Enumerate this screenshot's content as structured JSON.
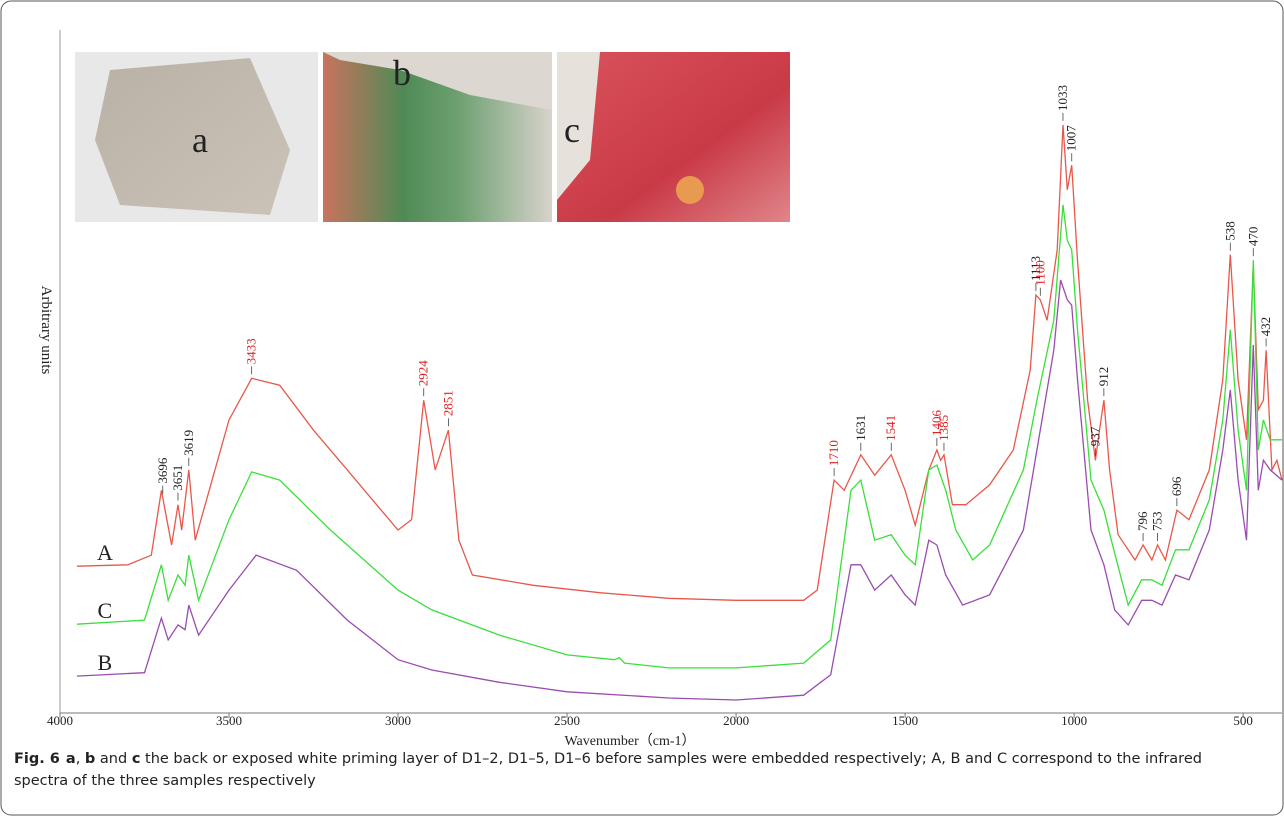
{
  "chart_data": {
    "type": "line",
    "x_label": "Wavenumber（cm-1）",
    "y_label": "Arbitrary units",
    "xlim": [
      4000,
      385
    ],
    "ylim": [
      0,
      100
    ],
    "xticks": [
      4000,
      3500,
      3000,
      2500,
      2000,
      1500,
      1000,
      500
    ],
    "series": [
      {
        "name": "A",
        "color": "#e8584a",
        "x": [
          3950,
          3800,
          3730,
          3700,
          3670,
          3651,
          3640,
          3619,
          3600,
          3550,
          3500,
          3433,
          3350,
          3250,
          3150,
          3050,
          3000,
          2960,
          2924,
          2890,
          2851,
          2820,
          2780,
          2600,
          2400,
          2200,
          2000,
          1800,
          1760,
          1710,
          1680,
          1631,
          1590,
          1541,
          1500,
          1470,
          1430,
          1406,
          1395,
          1385,
          1360,
          1320,
          1250,
          1180,
          1130,
          1113,
          1100,
          1080,
          1050,
          1033,
          1020,
          1007,
          990,
          960,
          937,
          925,
          912,
          895,
          870,
          820,
          796,
          770,
          753,
          730,
          696,
          660,
          600,
          560,
          538,
          515,
          490,
          470,
          455,
          440,
          432,
          415,
          400,
          385
        ],
        "values": [
          21.5,
          21.7,
          23.1,
          32.6,
          24.6,
          30.5,
          26.8,
          35.6,
          25.3,
          34.1,
          42.9,
          49.0,
          48.0,
          41.4,
          35.6,
          29.7,
          26.8,
          28.3,
          45.8,
          35.6,
          41.4,
          25.3,
          20.2,
          18.7,
          17.6,
          16.8,
          16.5,
          16.5,
          18.0,
          34.1,
          32.6,
          37.8,
          34.8,
          37.8,
          32.6,
          27.5,
          35.6,
          38.5,
          37.0,
          37.8,
          30.5,
          30.5,
          33.4,
          38.5,
          50.2,
          61.2,
          60.5,
          57.5,
          67.8,
          86.1,
          76.6,
          80.2,
          66.3,
          45.8,
          37.0,
          41.4,
          45.8,
          35.6,
          26.1,
          22.4,
          24.6,
          22.4,
          24.6,
          22.4,
          29.7,
          28.3,
          35.6,
          48.8,
          67.1,
          48.8,
          40.0,
          65.6,
          44.4,
          45.8,
          53.1,
          35.6,
          37.0,
          34.1
        ]
      },
      {
        "name": "C",
        "color": "#3adf3a",
        "x": [
          3950,
          3750,
          3700,
          3680,
          3651,
          3630,
          3619,
          3590,
          3500,
          3433,
          3350,
          3200,
          3000,
          2900,
          2700,
          2500,
          2360,
          2345,
          2330,
          2200,
          2000,
          1800,
          1720,
          1660,
          1631,
          1590,
          1541,
          1500,
          1470,
          1430,
          1406,
          1380,
          1350,
          1300,
          1250,
          1150,
          1110,
          1060,
          1033,
          1020,
          1007,
          990,
          950,
          912,
          890,
          840,
          800,
          770,
          740,
          700,
          660,
          600,
          560,
          538,
          515,
          490,
          470,
          455,
          440,
          420,
          385
        ],
        "values": [
          13.0,
          13.6,
          21.7,
          16.5,
          20.2,
          18.7,
          23.1,
          16.5,
          28.3,
          35.3,
          34.1,
          26.8,
          18.0,
          15.1,
          11.4,
          8.5,
          7.8,
          8.1,
          7.3,
          6.6,
          6.6,
          7.3,
          10.7,
          32.6,
          34.1,
          25.3,
          26.1,
          23.1,
          21.7,
          35.6,
          36.3,
          32.6,
          26.8,
          22.4,
          24.6,
          35.6,
          45.8,
          57.5,
          74.4,
          69.2,
          67.8,
          56.1,
          34.1,
          29.7,
          25.3,
          15.8,
          19.5,
          19.5,
          18.7,
          23.9,
          23.9,
          31.2,
          42.9,
          56.1,
          41.4,
          32.6,
          66.3,
          38.5,
          42.9,
          40.0,
          40.0
        ]
      },
      {
        "name": "B",
        "color": "#9a4cb0",
        "x": [
          3950,
          3750,
          3700,
          3680,
          3651,
          3630,
          3619,
          3590,
          3500,
          3420,
          3300,
          3150,
          3000,
          2900,
          2700,
          2500,
          2200,
          2000,
          1800,
          1720,
          1660,
          1631,
          1590,
          1541,
          1500,
          1470,
          1430,
          1406,
          1380,
          1330,
          1250,
          1150,
          1110,
          1060,
          1040,
          1020,
          1007,
          990,
          950,
          912,
          880,
          840,
          800,
          770,
          740,
          700,
          660,
          600,
          560,
          538,
          515,
          490,
          470,
          455,
          440,
          420,
          385
        ],
        "values": [
          5.4,
          5.9,
          13.9,
          10.7,
          12.9,
          12.2,
          15.8,
          11.4,
          18.0,
          23.1,
          20.9,
          13.6,
          7.8,
          6.3,
          4.5,
          3.1,
          2.2,
          1.9,
          2.6,
          5.6,
          21.7,
          21.7,
          18.0,
          20.2,
          17.3,
          15.8,
          25.3,
          24.6,
          20.2,
          15.8,
          17.3,
          26.8,
          38.5,
          53.1,
          63.4,
          60.5,
          59.7,
          48.8,
          26.8,
          21.7,
          15.1,
          12.9,
          16.5,
          16.5,
          15.8,
          20.2,
          19.5,
          26.8,
          38.5,
          47.3,
          34.1,
          25.3,
          53.9,
          32.6,
          37.0,
          35.6,
          34.1
        ]
      }
    ],
    "annotations": [
      {
        "x": 3696,
        "color": "#222222"
      },
      {
        "x": 3651,
        "color": "#222222"
      },
      {
        "x": 3619,
        "color": "#222222"
      },
      {
        "x": 3433,
        "color": "#e02020"
      },
      {
        "x": 2924,
        "color": "#e02020"
      },
      {
        "x": 2851,
        "color": "#e02020"
      },
      {
        "x": 1710,
        "color": "#e02020"
      },
      {
        "x": 1631,
        "color": "#222222"
      },
      {
        "x": 1541,
        "color": "#e02020"
      },
      {
        "x": 1406,
        "color": "#e02020"
      },
      {
        "x": 1385,
        "color": "#e02020"
      },
      {
        "x": 1113,
        "color": "#222222"
      },
      {
        "x": 1100,
        "color": "#e02020"
      },
      {
        "x": 1033,
        "color": "#222222"
      },
      {
        "x": 1007,
        "color": "#222222"
      },
      {
        "x": 937,
        "color": "#222222"
      },
      {
        "x": 912,
        "color": "#222222"
      },
      {
        "x": 796,
        "color": "#222222"
      },
      {
        "x": 753,
        "color": "#222222"
      },
      {
        "x": 696,
        "color": "#222222"
      },
      {
        "x": 538,
        "color": "#222222"
      },
      {
        "x": 470,
        "color": "#222222"
      },
      {
        "x": 432,
        "color": "#222222"
      }
    ]
  },
  "insets": [
    {
      "label": "a"
    },
    {
      "label": "b"
    },
    {
      "label": "c"
    }
  ],
  "caption": {
    "runs": [
      {
        "text": "Fig. 6",
        "bold": true
      },
      {
        "text": "a",
        "bold": true
      },
      {
        "text": ", ",
        "bold": false
      },
      {
        "text": "b",
        "bold": true
      },
      {
        "text": " and ",
        "bold": false
      },
      {
        "text": "c",
        "bold": true
      },
      {
        "text": " the back or exposed white priming layer of D1–2, D1–5, D1–6 before samples were embedded respectively; A, B and C correspond to the infrared spectra of the three samples respectively",
        "bold": false
      }
    ]
  }
}
